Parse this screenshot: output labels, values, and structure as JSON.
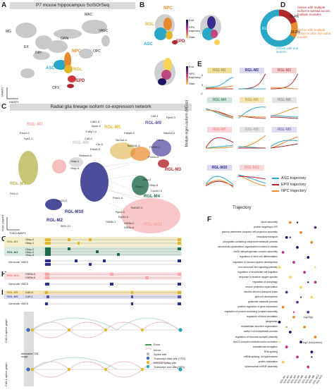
{
  "panels": {
    "a": "A",
    "b": "B",
    "c": "C",
    "d": "D",
    "e": "E",
    "f": "F",
    "g": "G",
    "h": "H",
    "i": "I"
  },
  "panel_a": {
    "title": "P7 mouse hippocampus ScISOrSeq",
    "clusters": [
      "MAC",
      "MG",
      "GRN",
      "VASC",
      "EX",
      "INH",
      "OPC",
      "NPC",
      "ASC",
      "RGL",
      "EPD",
      "CPX"
    ],
    "axis_x": "UMAP1",
    "axis_y": "UMAP2"
  },
  "panel_b": {
    "labels_top": {
      "npc": "NPC",
      "rgl": "RGL",
      "epd": "EPD",
      "asc": "ASC"
    },
    "legend_top": {
      "end": "End",
      "traj": "EPD",
      "traj2": "trajectory",
      "start": "Start"
    },
    "legend_bottom": {
      "end": "End",
      "traj": "NPC",
      "traj2": "trajectory",
      "start": "Start"
    }
  },
  "panel_c": {
    "title": "Radial glia lineage isoform co-expression network",
    "modules": [
      "RGL-M7",
      "RGL-M5",
      "RGL-M9",
      "RGL-M6",
      "RGL-M3",
      "RGL-M4",
      "RGL-M1",
      "RGL-M10",
      "RGL-M2",
      "RGL-M11"
    ],
    "genes": [
      "Esm1-0",
      "Syk1-0",
      "Cd81-0",
      "Apoe-0",
      "Fabp7-0",
      "Fabp5-0",
      "Cd9-1",
      "Rps9-0",
      "Slc1a3-0",
      "Cd9-0",
      "Cbr-0",
      "Prdx6-0",
      "Selenon-0",
      "Ndufv2-0",
      "Tsc22d1-0",
      "Dbl-0",
      "Pcdh9-0",
      "Polr1d-0",
      "Gfap-1",
      "Gfap-2",
      "Gfap-5",
      "Cox4i1-0",
      "Gfap-3",
      "Gfap-0",
      "Prdx1-0",
      "Fth1-0",
      "Lrrc23-0",
      "Ift20-13",
      "Rps3-0",
      "Rpl32-0",
      "Rnf187-0",
      "H3f3b-1",
      "H3f3b-2",
      "H3f3b-0"
    ],
    "axis_x": "TOM UMAP1",
    "axis_y": "TOM UMAP2"
  },
  "panel_d": {
    "values": {
      "one": "61.5%",
      "same": "18.2%",
      "multi": "20.4%"
    },
    "labels": {
      "multi": "Genes with multiple isoforms spread across multiple modules",
      "same": "Genes with multiple isoforms all in the same module",
      "one": "Genes with one isoform"
    },
    "chart_data": {
      "type": "pie",
      "categories": [
        "Genes with one isoform",
        "Genes with multiple isoforms all in the same module",
        "Genes with multiple isoforms spread across multiple modules"
      ],
      "values": [
        61.5,
        18.2,
        20.4
      ]
    }
  },
  "panel_e": {
    "ylabel": "Module eigen-isoform (MEiso)",
    "xlabel": "Trajectory",
    "modules": [
      "RGL-M1",
      "RGL-M2",
      "RGL-M3",
      "RGL-M4",
      "RGL-M5",
      "RGL-M6",
      "RGL-M7",
      "RGL-M8",
      "RGL-M9",
      "RGL-M10",
      "RGL-M11"
    ],
    "y_ticks": [
      "2",
      "0",
      "-2"
    ],
    "legend": [
      "ASC trajectory",
      "EPD trajectory",
      "NPC trajectory"
    ],
    "colors": {
      "asc": "#2aa7c7",
      "epd": "#b3262a",
      "npc": "#e8892b"
    }
  },
  "panel_f": {
    "terms": [
      "cilium assembly",
      "protein targeting to ER",
      "plasma membrane bounded cell projection assembly",
      "intraciliary transport",
      "phosphate-containing compound metabolic process",
      "microtubule cytoskeleton organization involved in mitosis",
      "NADH dehydrogenase complex assembly",
      "regulation of stem cell differentiation",
      "regulation of nervous system development",
      "non-canonical Wnt signaling pathway",
      "regulation of endothelial cell migration",
      "response to reactive oxygen species",
      "regulation of autophagy",
      "neuron projection organization",
      "aerobic electron transport chain",
      "glial cell development",
      "glutamate catabolic process",
      "positive regulation of gene expression",
      "regulation of protein-containing complex assembly",
      "regulation of blood circulation",
      "gliogenesis",
      "extracellular structure organization",
      "acetyl-CoA biosynthetic process",
      "regulation of neuronal synaptic plasticity",
      "Arp2/3 complex-mediated actin nucleation",
      "translational elongation",
      "RNA splicing",
      "mRNA splicing, via spliceosome",
      "protein maturation",
      "spliceosomal snRNP assembly"
    ],
    "modules": [
      "RGL-M1",
      "RGL-M2",
      "RGL-M3",
      "RGL-M4",
      "RGL-M5",
      "RGL-M6",
      "RGL-M7",
      "RGL-M8",
      "RGL-M9",
      "RGL-M10",
      "RGL-M11"
    ],
    "legend_p": "-log10(p)",
    "legend_fold": "log2 (fold enrich)"
  },
  "panel_g": {
    "rows": [
      {
        "mod": "RGL-M1",
        "isos": [
          "Gfap-0",
          "Gfap-1"
        ]
      },
      {
        "mod": "RGL-M4",
        "isos": [
          "Gfap-2",
          "Gfap-3",
          "Gfap-5"
        ]
      }
    ],
    "gencode": "Gencode VM23"
  },
  "panel_h": {
    "rows": [
      {
        "mod": "RGL-M11",
        "isos": [
          "H3f3b-0",
          "H3f3b-5"
        ]
      }
    ],
    "gencode": "Gencode VM23"
  },
  "panel_i": {
    "rows": [
      {
        "mod": "RGL-M5",
        "isos": [
          "Cd9-0"
        ]
      },
      {
        "mod": "RGL-M9",
        "isos": [
          "Cd9-1"
        ]
      }
    ],
    "gencode": "Gencode VM23",
    "graph1": "Cd9-0 splice graph",
    "graph2": "Cd9-1 splice graph",
    "alt_tss": "Alternative TSS usage",
    "legend": [
      "Exon",
      "Intron",
      "Splice site",
      "Transcript start site (TSS)",
      "Internal splice site",
      "Transcript end site (TES)"
    ]
  }
}
